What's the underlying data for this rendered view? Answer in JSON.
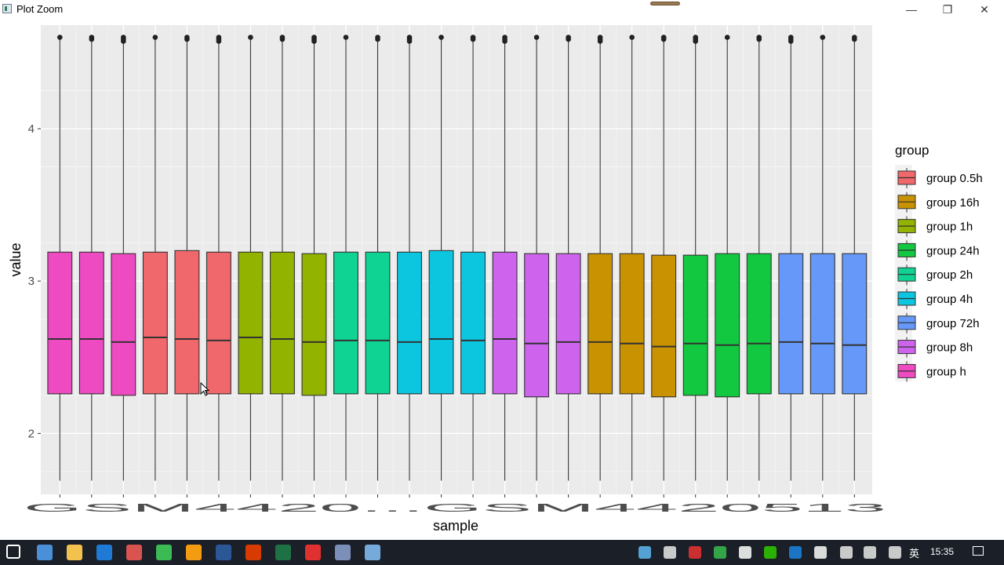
{
  "window": {
    "title": "Plot Zoom",
    "minimize": "—",
    "maximize": "❐",
    "close": "✕"
  },
  "chart_data": {
    "type": "boxplot",
    "xlabel": "sample",
    "ylabel": "value",
    "ylim": [
      1.6,
      4.68
    ],
    "yticks": [
      2,
      3,
      4
    ],
    "grid": true,
    "legend_title": "group",
    "legend_position": "right",
    "legend": [
      {
        "name": "group 0.5h",
        "color": "#F0676C"
      },
      {
        "name": "group 16h",
        "color": "#C99200"
      },
      {
        "name": "group 1h",
        "color": "#92B300"
      },
      {
        "name": "group 24h",
        "color": "#12C840"
      },
      {
        "name": "group 2h",
        "color": "#0ED393"
      },
      {
        "name": "group 4h",
        "color": "#0CC6E0"
      },
      {
        "name": "group 72h",
        "color": "#6598F8"
      },
      {
        "name": "group 8h",
        "color": "#CE64EE"
      },
      {
        "name": "group h",
        "color": "#EE4AC2"
      }
    ],
    "x_tick_text": "GSM4420...GSM4420513",
    "x_tick_labels_visible": [
      "GSM44",
      "4420513"
    ],
    "boxes": [
      {
        "group": "group h",
        "q1": 2.26,
        "median": 2.62,
        "q3": 3.19,
        "low": 1.69,
        "high": 4.6
      },
      {
        "group": "group h",
        "q1": 2.26,
        "median": 2.62,
        "q3": 3.19,
        "low": 1.69,
        "high": 4.6
      },
      {
        "group": "group h",
        "q1": 2.25,
        "median": 2.6,
        "q3": 3.18,
        "low": 1.69,
        "high": 4.6
      },
      {
        "group": "group 0.5h",
        "q1": 2.26,
        "median": 2.63,
        "q3": 3.19,
        "low": 1.69,
        "high": 4.6
      },
      {
        "group": "group 0.5h",
        "q1": 2.26,
        "median": 2.62,
        "q3": 3.2,
        "low": 1.69,
        "high": 4.6
      },
      {
        "group": "group 0.5h",
        "q1": 2.26,
        "median": 2.61,
        "q3": 3.19,
        "low": 1.69,
        "high": 4.6
      },
      {
        "group": "group 1h",
        "q1": 2.26,
        "median": 2.63,
        "q3": 3.19,
        "low": 1.69,
        "high": 4.6
      },
      {
        "group": "group 1h",
        "q1": 2.26,
        "median": 2.62,
        "q3": 3.19,
        "low": 1.69,
        "high": 4.6
      },
      {
        "group": "group 1h",
        "q1": 2.25,
        "median": 2.6,
        "q3": 3.18,
        "low": 1.69,
        "high": 4.6
      },
      {
        "group": "group 2h",
        "q1": 2.26,
        "median": 2.61,
        "q3": 3.19,
        "low": 1.69,
        "high": 4.6
      },
      {
        "group": "group 2h",
        "q1": 2.26,
        "median": 2.61,
        "q3": 3.19,
        "low": 1.69,
        "high": 4.6
      },
      {
        "group": "group 4h",
        "q1": 2.26,
        "median": 2.6,
        "q3": 3.19,
        "low": 1.69,
        "high": 4.6
      },
      {
        "group": "group 4h",
        "q1": 2.26,
        "median": 2.62,
        "q3": 3.2,
        "low": 1.69,
        "high": 4.6
      },
      {
        "group": "group 4h",
        "q1": 2.26,
        "median": 2.61,
        "q3": 3.19,
        "low": 1.69,
        "high": 4.6
      },
      {
        "group": "group 8h",
        "q1": 2.26,
        "median": 2.62,
        "q3": 3.19,
        "low": 1.69,
        "high": 4.6
      },
      {
        "group": "group 8h",
        "q1": 2.24,
        "median": 2.59,
        "q3": 3.18,
        "low": 1.69,
        "high": 4.6
      },
      {
        "group": "group 8h",
        "q1": 2.26,
        "median": 2.6,
        "q3": 3.18,
        "low": 1.69,
        "high": 4.6
      },
      {
        "group": "group 16h",
        "q1": 2.26,
        "median": 2.6,
        "q3": 3.18,
        "low": 1.69,
        "high": 4.6
      },
      {
        "group": "group 16h",
        "q1": 2.26,
        "median": 2.59,
        "q3": 3.18,
        "low": 1.69,
        "high": 4.6
      },
      {
        "group": "group 16h",
        "q1": 2.24,
        "median": 2.57,
        "q3": 3.17,
        "low": 1.69,
        "high": 4.6
      },
      {
        "group": "group 24h",
        "q1": 2.25,
        "median": 2.59,
        "q3": 3.17,
        "low": 1.69,
        "high": 4.6
      },
      {
        "group": "group 24h",
        "q1": 2.24,
        "median": 2.58,
        "q3": 3.18,
        "low": 1.69,
        "high": 4.6
      },
      {
        "group": "group 24h",
        "q1": 2.26,
        "median": 2.59,
        "q3": 3.18,
        "low": 1.69,
        "high": 4.6
      },
      {
        "group": "group 72h",
        "q1": 2.26,
        "median": 2.6,
        "q3": 3.18,
        "low": 1.69,
        "high": 4.6
      },
      {
        "group": "group 72h",
        "q1": 2.26,
        "median": 2.59,
        "q3": 3.18,
        "low": 1.69,
        "high": 4.6
      },
      {
        "group": "group 72h",
        "q1": 2.26,
        "median": 2.58,
        "q3": 3.18,
        "low": 1.69,
        "high": 4.6
      }
    ]
  },
  "taskbar": {
    "language": "英",
    "time": "15:35",
    "apps": [
      {
        "name": "start-icon",
        "color": "#ffffff"
      },
      {
        "name": "computer-icon",
        "color": "#4a90d9"
      },
      {
        "name": "file-explorer-icon",
        "color": "#f2c14e"
      },
      {
        "name": "edge-icon",
        "color": "#1f7ad6"
      },
      {
        "name": "app-red-icon",
        "color": "#d9534f"
      },
      {
        "name": "chrome-icon",
        "color": "#3cba54"
      },
      {
        "name": "sublime-icon",
        "color": "#f39c12"
      },
      {
        "name": "word-icon",
        "color": "#2b5797"
      },
      {
        "name": "acrobat-icon",
        "color": "#d83b01"
      },
      {
        "name": "excel-icon",
        "color": "#1e7145"
      },
      {
        "name": "youdao-icon",
        "color": "#e03131"
      },
      {
        "name": "r-icon",
        "color": "#7b8fb8"
      },
      {
        "name": "rstudio-icon",
        "color": "#75aadb"
      }
    ],
    "tray": [
      {
        "name": "tray-app-icon",
        "color": "#5bb0e8"
      },
      {
        "name": "microphone-icon",
        "color": "#dddddd"
      },
      {
        "name": "tray-red-icon",
        "color": "#e03131"
      },
      {
        "name": "tray-green-icon",
        "color": "#37b24d"
      },
      {
        "name": "qq-icon",
        "color": "#f2f2f2"
      },
      {
        "name": "wechat-icon",
        "color": "#2dc100"
      },
      {
        "name": "bluetooth-icon",
        "color": "#1c7ed6"
      },
      {
        "name": "security-icon",
        "color": "#eeeeee"
      },
      {
        "name": "wifi-icon",
        "color": "#dddddd"
      },
      {
        "name": "volume-icon",
        "color": "#dddddd"
      },
      {
        "name": "battery-icon",
        "color": "#dddddd"
      }
    ]
  }
}
